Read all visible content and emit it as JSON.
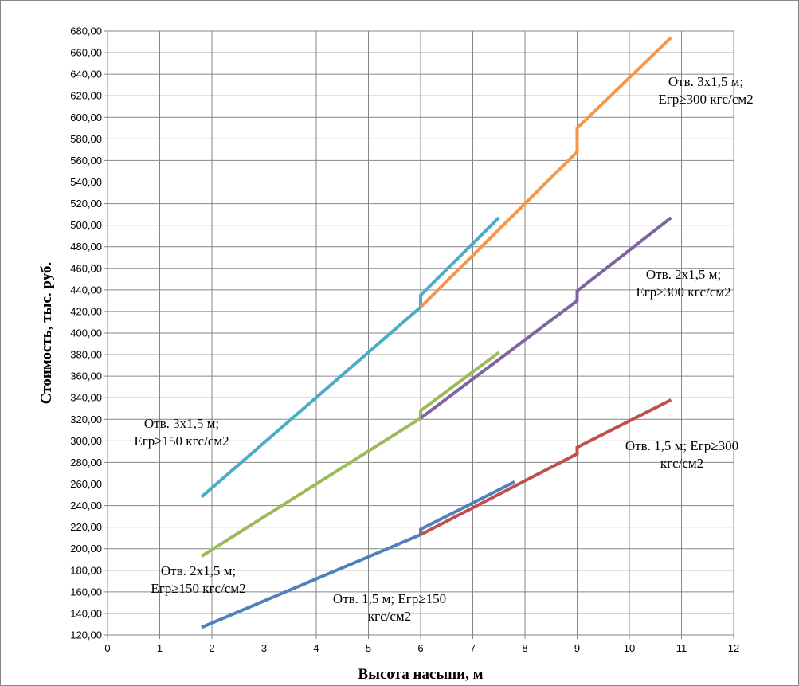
{
  "chart_data": {
    "type": "line",
    "xlabel": "Высота насыпи, м",
    "ylabel": "Стоимость, тыс. руб.",
    "xlim": [
      0,
      12
    ],
    "ylim": [
      120,
      680
    ],
    "x_ticks": [
      "0",
      "1",
      "2",
      "3",
      "4",
      "5",
      "6",
      "7",
      "8",
      "9",
      "10",
      "11",
      "12"
    ],
    "y_ticks": [
      "120,00",
      "140,00",
      "160,00",
      "180,00",
      "200,00",
      "220,00",
      "240,00",
      "260,00",
      "280,00",
      "300,00",
      "320,00",
      "340,00",
      "360,00",
      "380,00",
      "400,00",
      "420,00",
      "440,00",
      "460,00",
      "480,00",
      "500,00",
      "520,00",
      "540,00",
      "560,00",
      "580,00",
      "600,00",
      "620,00",
      "640,00",
      "660,00",
      "680,00"
    ],
    "grid": true,
    "legend": "none",
    "series": [
      {
        "color": "#4f81bd",
        "x": [
          1.8,
          6,
          6,
          7.8
        ],
        "y": [
          127,
          213,
          218,
          262
        ]
      },
      {
        "color": "#c0504d",
        "x": [
          6,
          9,
          9,
          10.8
        ],
        "y": [
          213,
          288,
          294,
          338
        ]
      },
      {
        "color": "#9bbb59",
        "x": [
          1.8,
          6,
          6,
          7.5
        ],
        "y": [
          193,
          321,
          328,
          382
        ]
      },
      {
        "color": "#8064a2",
        "x": [
          6,
          9,
          9,
          10.8
        ],
        "y": [
          321,
          430,
          439,
          507
        ]
      },
      {
        "color": "#4bacc6",
        "x": [
          1.8,
          6,
          6,
          7.5
        ],
        "y": [
          248,
          424,
          435,
          507
        ]
      },
      {
        "color": "#f79646",
        "x": [
          6,
          9,
          9,
          10.8
        ],
        "y": [
          424,
          568,
          590,
          674
        ]
      }
    ],
    "annotations": [
      {
        "lines": [
          "Отв. 3х1,5 м;",
          "Егр≥300 кгс/см2"
        ],
        "color": "#000000"
      },
      {
        "lines": [
          "Отв. 2х1,5 м;",
          "Егр≥300 кгс/см2"
        ],
        "color": "#000000"
      },
      {
        "lines": [
          "Отв. 1,5 м; Егр≥300",
          "кгс/см2"
        ],
        "color": "#000000"
      },
      {
        "lines": [
          "Отв. 3х1,5 м;",
          "Егр≥150 кгс/см2"
        ],
        "color": "#000000"
      },
      {
        "lines": [
          "Отв. 2х1,5 м;",
          "Егр≥150 кгс/см2"
        ],
        "color": "#000000"
      },
      {
        "lines": [
          "Отв. 1,5 м; Егр≥150",
          "кгс/см2"
        ],
        "color": "#000000"
      }
    ]
  }
}
